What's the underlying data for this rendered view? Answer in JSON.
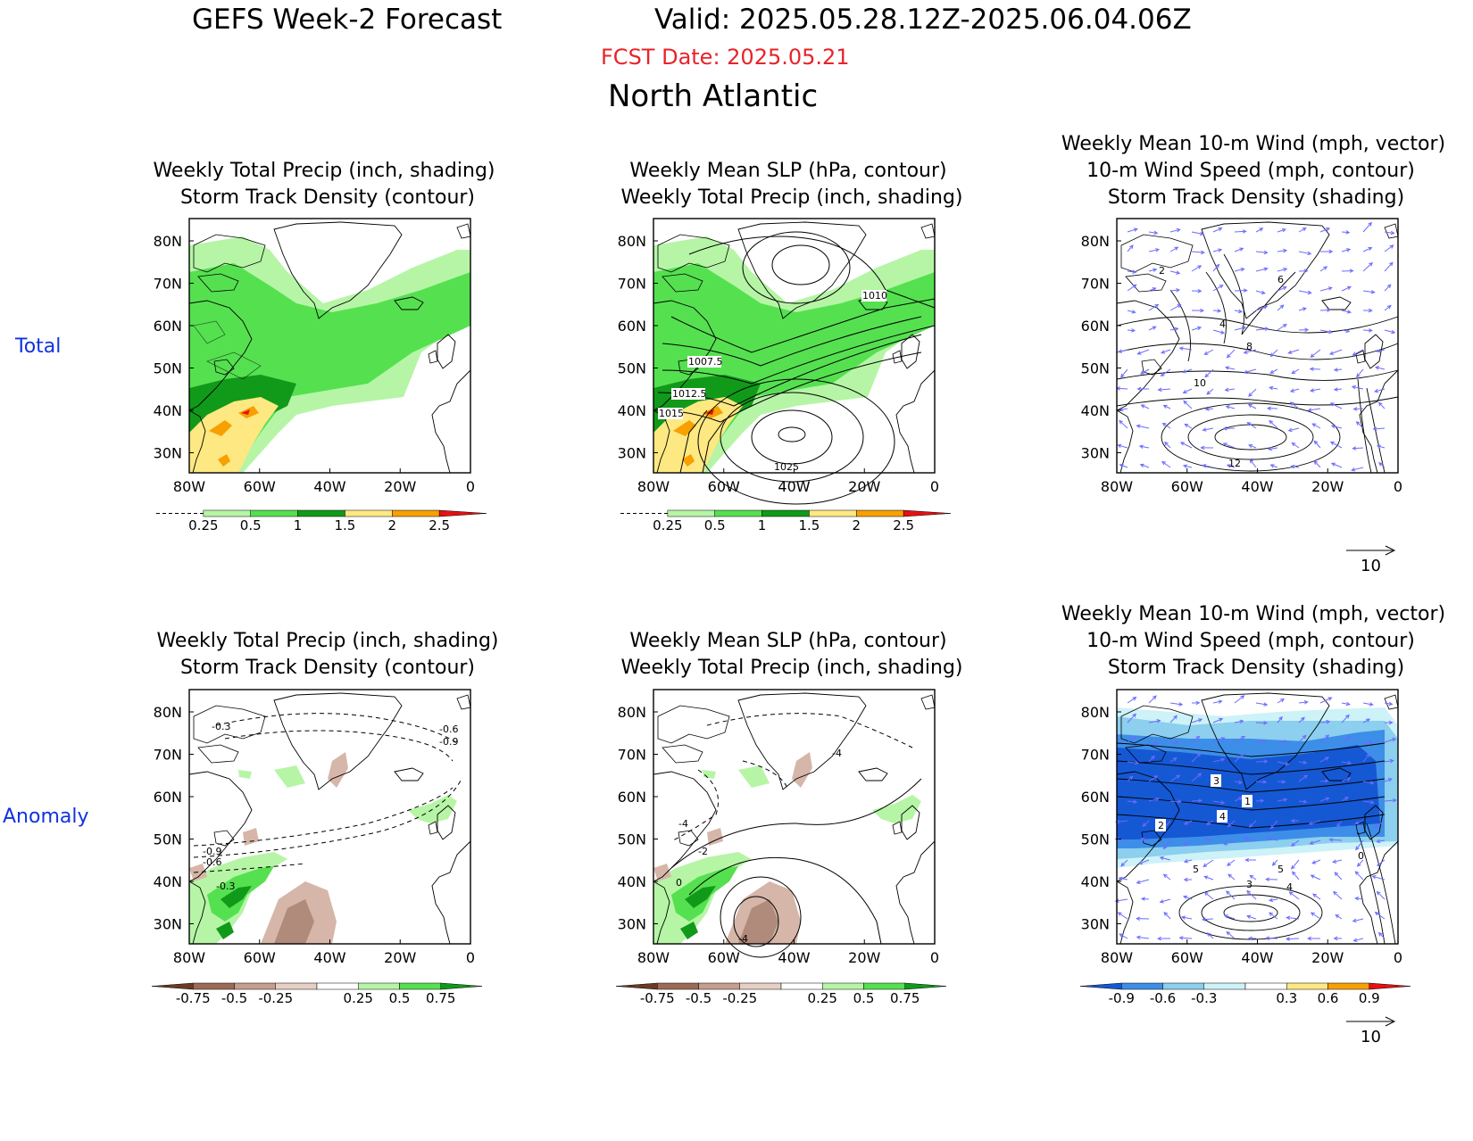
{
  "header": {
    "title_left": "GEFS Week-2 Forecast",
    "title_right": "Valid: 2025.05.28.12Z-2025.06.04.06Z",
    "fcst_date": "FCST Date: 2025.05.21",
    "region": "North Atlantic"
  },
  "rows": {
    "total": "Total",
    "anomaly": "Anomaly"
  },
  "titles": {
    "precip_track": [
      "Weekly Total Precip (inch, shading)",
      "Storm Track Density (contour)"
    ],
    "slp_precip": [
      "Weekly Mean SLP (hPa, contour)",
      "Weekly Total Precip (inch, shading)"
    ],
    "wind": [
      "Weekly Mean 10-m Wind (mph, vector)",
      "10-m Wind Speed (mph, contour)",
      "Storm Track Density (shading)"
    ]
  },
  "lat_labels": [
    "80N",
    "70N",
    "60N",
    "50N",
    "40N",
    "30N"
  ],
  "lon_labels": [
    "80W",
    "60W",
    "40W",
    "20W",
    "0"
  ],
  "slp_labels": [
    "1010",
    "1007.5",
    "1012.5",
    "1015",
    "1025"
  ],
  "track_labels_total": [
    "2",
    "4",
    "6",
    "8",
    "10",
    "12"
  ],
  "track_labels_anom": [
    "-0.3",
    "-0.6",
    "-0.9",
    "-0.9",
    "-0.6",
    "-0.3"
  ],
  "slp_anom_labels": [
    "-4",
    "-4",
    "-2",
    "0",
    "-4"
  ],
  "wind_anom_labels": [
    "3",
    "1",
    "4",
    "2",
    "5",
    "3",
    "0",
    "5",
    "4"
  ],
  "legends": {
    "precip": {
      "ticks": [
        "0.25",
        "0.5",
        "1",
        "1.5",
        "2",
        "2.5"
      ],
      "colors": [
        "#ffffff",
        "#b6f5a6",
        "#55e050",
        "#119a1a",
        "#fde882",
        "#f7a000",
        "#e81010"
      ]
    },
    "precip_anom": {
      "ticks": [
        "-0.75",
        "-0.5",
        "-0.25",
        "0.25",
        "0.5",
        "0.75"
      ],
      "colors": [
        "#6b3a22",
        "#9d6a57",
        "#c79e8e",
        "#e6cfc4",
        "#ffffff",
        "#b6f5a6",
        "#55e050",
        "#119a1a"
      ]
    },
    "track_anom": {
      "ticks": [
        "-0.9",
        "-0.6",
        "-0.3",
        "0.3",
        "0.6",
        "0.9"
      ],
      "colors": [
        "#1558d4",
        "#3c8ee8",
        "#8ccfee",
        "#cdf2f8",
        "#ffffff",
        "#fde882",
        "#f7a000",
        "#e81010"
      ]
    }
  },
  "wind_ref": "10",
  "colors": {
    "title_red": "#e8232a",
    "row_label_blue": "#1033e0",
    "vector": "#6b6bff",
    "land_line": "#000000",
    "green_light": "#b6f5a6",
    "green_mid": "#55e050",
    "green_dark": "#119a1a",
    "yellow": "#fde882",
    "orange": "#f7a000",
    "red": "#e81010",
    "brown_light": "#d6b6a8",
    "brown_mid": "#b08a7a",
    "blue_dark": "#1558d4",
    "blue_mid": "#3c8ee8",
    "blue_light": "#8ccfee",
    "blue_pale": "#cdf2f8"
  }
}
